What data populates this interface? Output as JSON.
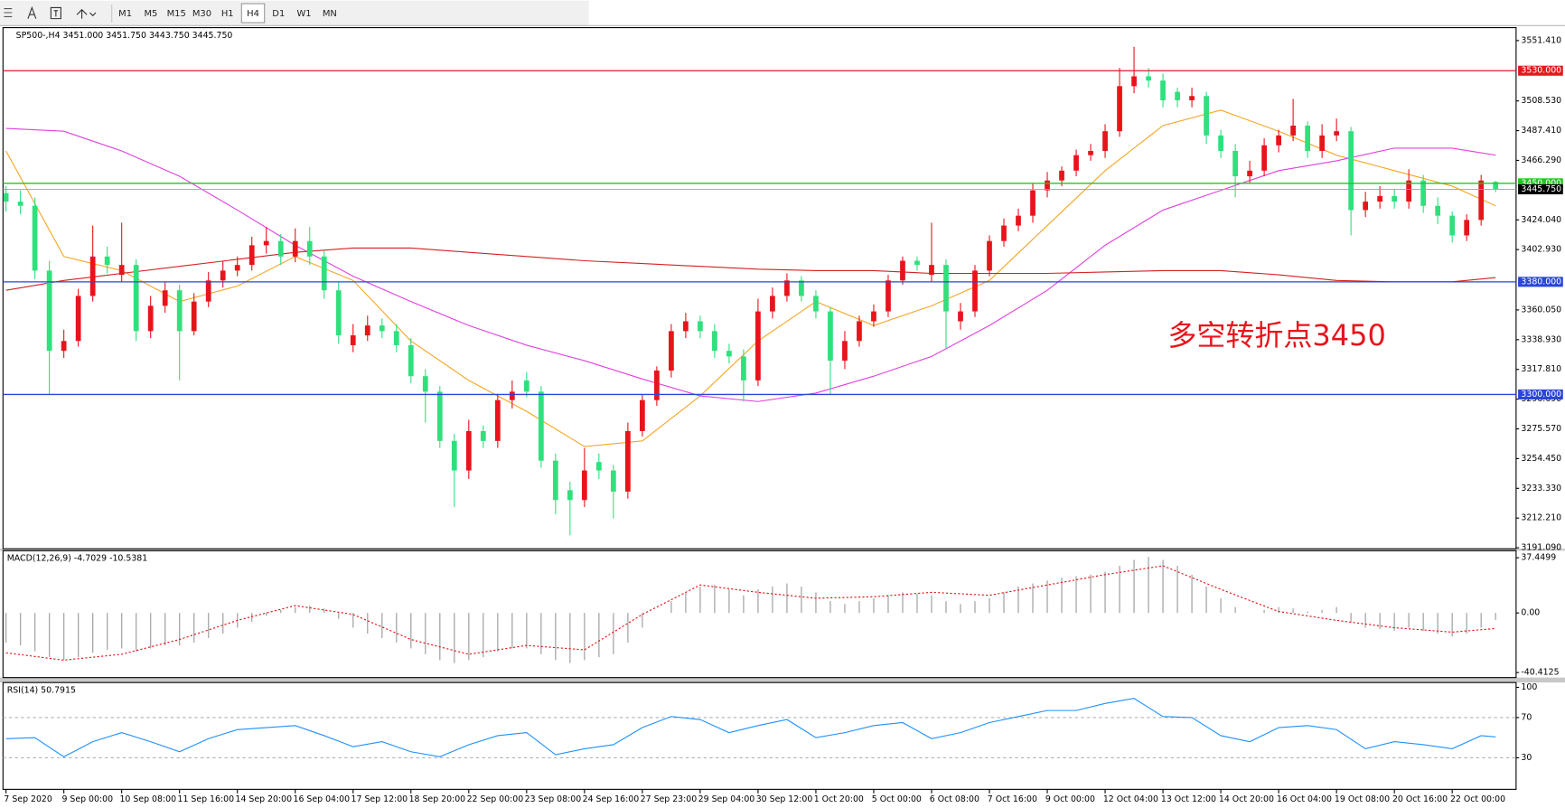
{
  "toolbar": {
    "timeframes": [
      "M1",
      "M5",
      "M15",
      "M30",
      "H1",
      "H4",
      "D1",
      "W1",
      "MN"
    ],
    "active": "H4"
  },
  "chart_data": [
    {
      "type": "candlestick",
      "title": "SP500-,H4  3451.000 3451.750 3443.750 3445.750",
      "categories": [
        "7 Sep 2020",
        null,
        null,
        null,
        "9 Sep 00:00",
        null,
        null,
        null,
        "10 Sep 08:00",
        null,
        null,
        null,
        "11 Sep 16:00",
        null,
        null,
        null,
        "14 Sep 20:00",
        null,
        null,
        null,
        "16 Sep 04:00",
        null,
        null,
        null,
        "17 Sep 12:00",
        null,
        null,
        null,
        "18 Sep 20:00",
        null,
        null,
        null,
        "22 Sep 00:00",
        null,
        null,
        null,
        "23 Sep 08:00",
        null,
        null,
        null,
        "24 Sep 16:00",
        null,
        null,
        null,
        "27 Sep 23:00",
        null,
        null,
        null,
        "29 Sep 04:00",
        null,
        null,
        null,
        "30 Sep 12:00",
        null,
        null,
        null,
        "1 Oct 20:00",
        null,
        null,
        null,
        "5 Oct 00:00",
        null,
        null,
        null,
        "6 Oct 08:00",
        null,
        null,
        null,
        "7 Oct 16:00",
        null,
        null,
        null,
        "9 Oct 00:00",
        null,
        null,
        null,
        "12 Oct 04:00",
        null,
        null,
        null,
        "13 Oct 12:00",
        null,
        null,
        null,
        "14 Oct 20:00",
        null,
        null,
        null,
        "16 Oct 04:00",
        null,
        null,
        null,
        "19 Oct 08:00",
        null,
        null,
        null,
        "20 Oct 16:00",
        null,
        null,
        null,
        "22 Oct 00:00",
        null,
        null,
        null
      ],
      "open": [
        3443,
        3437,
        3434,
        3388,
        3331,
        3338,
        3370,
        3398,
        3385,
        3392,
        3345,
        3363,
        3374,
        3345,
        3366,
        3381,
        3388,
        3392,
        3406,
        3409,
        3398,
        3409,
        3398,
        3374,
        3335,
        3342,
        3349,
        3345,
        3335,
        3313,
        3302,
        3267,
        3246,
        3274,
        3267,
        3296,
        3310,
        3302,
        3253,
        3232,
        3225,
        3252,
        3246,
        3231,
        3274,
        3296,
        3317,
        3345,
        3352,
        3345,
        3331,
        3327,
        3310,
        3359,
        3370,
        3381,
        3370,
        3359,
        3324,
        3338,
        3352,
        3359,
        3381,
        3395,
        3385,
        3392,
        3352,
        3359,
        3388,
        3409,
        3420,
        3427,
        3445,
        3452,
        3459,
        3470,
        3473,
        3487,
        3519,
        3526,
        3523,
        3515,
        3509,
        3512,
        3484,
        3473,
        3455,
        3459,
        3477,
        3484,
        3491,
        3473,
        3484,
        3487,
        3431,
        3437,
        3441,
        3437,
        3452,
        3434,
        3427,
        3413,
        3424,
        3451
      ],
      "high": [
        3448,
        3445,
        3440,
        3395,
        3346,
        3375,
        3420,
        3405,
        3422,
        3396,
        3370,
        3380,
        3378,
        3372,
        3387,
        3395,
        3398,
        3412,
        3419,
        3414,
        3418,
        3419,
        3402,
        3380,
        3350,
        3356,
        3354,
        3350,
        3340,
        3318,
        3306,
        3272,
        3282,
        3278,
        3300,
        3310,
        3316,
        3306,
        3258,
        3238,
        3262,
        3258,
        3250,
        3280,
        3300,
        3320,
        3350,
        3358,
        3356,
        3350,
        3336,
        3332,
        3368,
        3376,
        3386,
        3384,
        3374,
        3362,
        3345,
        3356,
        3364,
        3385,
        3398,
        3398,
        3422,
        3396,
        3365,
        3392,
        3413,
        3425,
        3432,
        3450,
        3458,
        3462,
        3474,
        3478,
        3492,
        3532,
        3547,
        3532,
        3528,
        3518,
        3518,
        3515,
        3488,
        3478,
        3466,
        3482,
        3488,
        3510,
        3494,
        3492,
        3496,
        3490,
        3444,
        3448,
        3446,
        3460,
        3456,
        3440,
        3430,
        3428,
        3456,
        3451.75
      ],
      "low": [
        3430,
        3428,
        3382,
        3300,
        3326,
        3334,
        3366,
        3386,
        3380,
        3338,
        3340,
        3358,
        3310,
        3342,
        3362,
        3376,
        3384,
        3388,
        3400,
        3392,
        3394,
        3392,
        3368,
        3336,
        3330,
        3338,
        3340,
        3330,
        3308,
        3280,
        3262,
        3220,
        3240,
        3262,
        3262,
        3290,
        3298,
        3248,
        3215,
        3200,
        3220,
        3240,
        3212,
        3226,
        3270,
        3292,
        3312,
        3340,
        3340,
        3326,
        3322,
        3295,
        3306,
        3354,
        3366,
        3366,
        3354,
        3300,
        3318,
        3334,
        3348,
        3355,
        3378,
        3388,
        3380,
        3333,
        3346,
        3355,
        3384,
        3405,
        3416,
        3422,
        3440,
        3448,
        3455,
        3466,
        3468,
        3483,
        3514,
        3518,
        3504,
        3504,
        3504,
        3478,
        3468,
        3440,
        3450,
        3455,
        3472,
        3480,
        3468,
        3468,
        3480,
        3413,
        3426,
        3432,
        3432,
        3432,
        3429,
        3421,
        3408,
        3409,
        3420,
        3443.75
      ],
      "close": [
        3437,
        3434,
        3388,
        3331,
        3338,
        3370,
        3398,
        3392,
        3392,
        3345,
        3363,
        3374,
        3345,
        3366,
        3381,
        3388,
        3392,
        3406,
        3409,
        3398,
        3409,
        3398,
        3374,
        3342,
        3342,
        3349,
        3345,
        3335,
        3313,
        3302,
        3267,
        3246,
        3274,
        3267,
        3296,
        3302,
        3302,
        3253,
        3225,
        3225,
        3246,
        3246,
        3231,
        3274,
        3296,
        3317,
        3345,
        3352,
        3345,
        3331,
        3327,
        3310,
        3359,
        3370,
        3381,
        3370,
        3359,
        3324,
        3338,
        3352,
        3359,
        3381,
        3395,
        3392,
        3392,
        3359,
        3359,
        3388,
        3409,
        3420,
        3427,
        3445,
        3452,
        3459,
        3470,
        3473,
        3487,
        3519,
        3526,
        3523,
        3509,
        3509,
        3512,
        3484,
        3473,
        3455,
        3459,
        3477,
        3484,
        3491,
        3473,
        3484,
        3487,
        3431,
        3437,
        3441,
        3437,
        3452,
        3434,
        3427,
        3413,
        3424,
        3452,
        3445.75
      ],
      "up_color": "#e8141b",
      "down_color": "#2fe07d",
      "overlays": [
        {
          "color": "#f5a623",
          "x": [
            0,
            4,
            8,
            12,
            16,
            20,
            24,
            28,
            32,
            36,
            40,
            44,
            48,
            52,
            56,
            60,
            64,
            68,
            72,
            76,
            80,
            84,
            88,
            92,
            96,
            100,
            103
          ],
          "values": [
            3473,
            3398,
            3388,
            3366,
            3377,
            3398,
            3381,
            3338,
            3310,
            3288,
            3263,
            3267,
            3299,
            3338,
            3366,
            3349,
            3363,
            3381,
            3420,
            3459,
            3491,
            3502,
            3487,
            3470,
            3459,
            3448,
            3434
          ]
        },
        {
          "color": "#e040e0",
          "x": [
            0,
            4,
            8,
            12,
            16,
            20,
            24,
            28,
            32,
            36,
            40,
            44,
            48,
            52,
            56,
            60,
            64,
            68,
            72,
            76,
            80,
            84,
            88,
            92,
            96,
            100,
            103
          ],
          "values": [
            3489,
            3487,
            3473,
            3455,
            3431,
            3406,
            3384,
            3366,
            3349,
            3335,
            3324,
            3311,
            3299,
            3295,
            3301,
            3313,
            3327,
            3349,
            3374,
            3406,
            3431,
            3445,
            3459,
            3466,
            3475,
            3475,
            3470
          ]
        },
        {
          "color": "#d42020",
          "x": [
            0,
            4,
            8,
            12,
            16,
            20,
            24,
            28,
            32,
            36,
            40,
            44,
            48,
            52,
            56,
            60,
            64,
            68,
            72,
            76,
            80,
            84,
            88,
            92,
            96,
            100,
            103
          ],
          "values": [
            3374,
            3381,
            3386,
            3391,
            3396,
            3401,
            3404,
            3404,
            3401,
            3398,
            3395,
            3393,
            3391,
            3389,
            3388,
            3388,
            3386,
            3386,
            3386,
            3387,
            3388,
            3388,
            3385,
            3381,
            3380,
            3380,
            3383
          ]
        }
      ],
      "levels": [
        {
          "value": 3530,
          "label": "3530.000",
          "color": "#e31a1c"
        },
        {
          "value": 3450,
          "label": "3450.000",
          "color": "#1fc71f"
        },
        {
          "value": 3380,
          "label": "3380.000",
          "color": "#2946d8"
        },
        {
          "value": 3300,
          "label": "3300.000",
          "color": "#2946d8"
        }
      ],
      "current": {
        "value": 3445.75,
        "label": "3445.750",
        "color": "#000000"
      },
      "annotation": {
        "text": "多空转折点3450",
        "color": "#e8141b"
      },
      "ylim": [
        3190.4,
        3560.6
      ],
      "yticks": [
        {
          "value": 3551.41,
          "label": "3551.410"
        },
        {
          "value": 3508.53,
          "label": "3508.530"
        },
        {
          "value": 3487.41,
          "label": "3487.410"
        },
        {
          "value": 3466.29,
          "label": "3466.290"
        },
        {
          "value": 3424.04,
          "label": "3424.040"
        },
        {
          "value": 3402.93,
          "label": "3402.930"
        },
        {
          "value": 3360.05,
          "label": "3360.050"
        },
        {
          "value": 3338.93,
          "label": "3338.930"
        },
        {
          "value": 3317.81,
          "label": "3317.810"
        },
        {
          "value": 3296.69,
          "label": "3296.690"
        },
        {
          "value": 3275.57,
          "label": "3275.570"
        },
        {
          "value": 3254.45,
          "label": "3254.450"
        },
        {
          "value": 3233.33,
          "label": "3233.330"
        },
        {
          "value": 3212.21,
          "label": "3212.210"
        },
        {
          "value": 3191.09,
          "label": "3191.090"
        }
      ]
    },
    {
      "type": "macd",
      "title": "MACD(12,26,9) -4.7029 -10.5381",
      "histogram": {
        "color": "#a8a8a8",
        "values": [
          -20,
          -22,
          -26,
          -30,
          -32,
          -30,
          -27,
          -25,
          -24,
          -26,
          -24,
          -22,
          -22,
          -20,
          -17,
          -14,
          -10,
          -6,
          -2,
          2,
          4,
          5,
          3,
          -4,
          -10,
          -14,
          -17,
          -20,
          -24,
          -28,
          -32,
          -34,
          -32,
          -30,
          -26,
          -24,
          -24,
          -28,
          -32,
          -34,
          -32,
          -30,
          -28,
          -20,
          -10,
          0,
          8,
          14,
          18,
          19,
          16,
          12,
          16,
          18,
          20,
          18,
          14,
          8,
          6,
          8,
          10,
          12,
          14,
          13,
          12,
          8,
          6,
          8,
          10,
          14,
          18,
          20,
          22,
          24,
          25,
          26,
          28,
          32,
          36,
          38,
          36,
          32,
          26,
          18,
          10,
          4,
          0,
          2,
          4,
          3,
          1,
          2,
          4,
          -6,
          -10,
          -11,
          -12,
          -10,
          -12,
          -14,
          -16,
          -14,
          -10,
          -4.7029
        ]
      },
      "signal": {
        "color": "#e01010",
        "x": [
          0,
          4,
          8,
          12,
          16,
          20,
          24,
          28,
          32,
          36,
          40,
          44,
          48,
          52,
          56,
          60,
          64,
          68,
          72,
          76,
          80,
          84,
          88,
          92,
          96,
          100,
          103
        ],
        "values": [
          -27,
          -32,
          -28,
          -18,
          -5,
          5,
          -1,
          -18,
          -28,
          -22,
          -25,
          -1,
          19,
          14,
          10,
          11,
          14,
          12,
          19,
          26,
          32,
          16,
          1,
          -5,
          -10,
          -13,
          -10.5381
        ]
      },
      "ylim": [
        -43.8,
        42.2
      ],
      "yticks": [
        37.4499,
        {
          "value": 0,
          "label": "0.00"
        },
        -40.4125
      ]
    },
    {
      "type": "line",
      "title": "RSI(14) 50.7915",
      "color": "#1e90ff",
      "x": [
        0,
        2,
        4,
        6,
        8,
        10,
        12,
        14,
        16,
        18,
        20,
        22,
        24,
        26,
        28,
        30,
        32,
        34,
        36,
        38,
        40,
        42,
        44,
        46,
        48,
        50,
        52,
        54,
        56,
        58,
        60,
        62,
        64,
        66,
        68,
        70,
        72,
        74,
        76,
        78,
        80,
        82,
        84,
        86,
        88,
        90,
        92,
        94,
        96,
        98,
        100,
        102,
        103
      ],
      "values": [
        49,
        50,
        31,
        46,
        55,
        46,
        36,
        49,
        58,
        60,
        62,
        52,
        41,
        46,
        36,
        31,
        43,
        52,
        55,
        33,
        39,
        43,
        60,
        71,
        68,
        55,
        62,
        68,
        50,
        55,
        62,
        65,
        49,
        55,
        65,
        71,
        77,
        77,
        84,
        89,
        71,
        70,
        52,
        46,
        60,
        62,
        58,
        39,
        46,
        43,
        39,
        52,
        50.7915
      ],
      "levels": [
        70,
        30
      ],
      "ylim": [
        -1.4,
        104.8
      ],
      "yticks": [
        100,
        70,
        30
      ]
    }
  ]
}
